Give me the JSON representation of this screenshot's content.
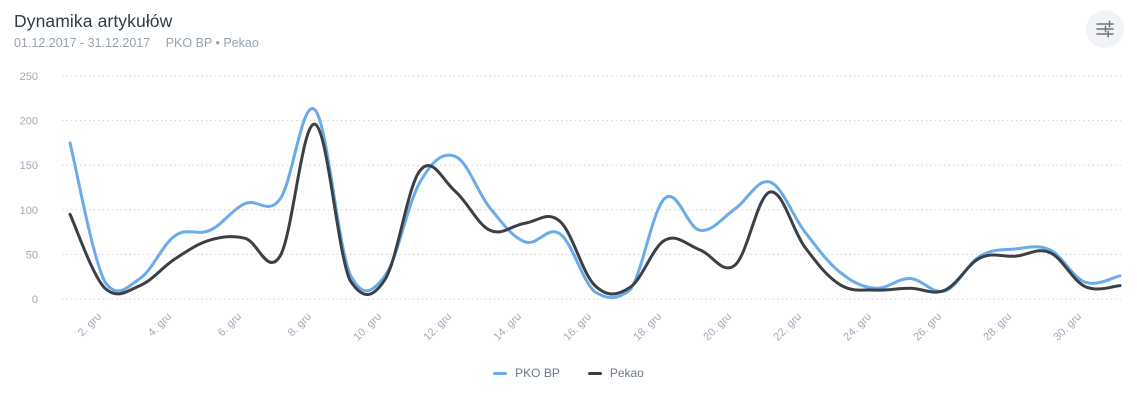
{
  "header": {
    "title": "Dynamika artykułów",
    "date_range": "01.12.2017 - 31.12.2017",
    "series_summary": "PKO BP • Pekao"
  },
  "controls": {
    "settings_icon": "sliders-icon"
  },
  "legend": {
    "items": [
      {
        "label": "PKO BP",
        "color": "#6aabe9"
      },
      {
        "label": "Pekao",
        "color": "#3b4046"
      }
    ]
  },
  "chart_data": {
    "type": "line",
    "title": "Dynamika artykułów",
    "xlabel": "",
    "ylabel": "",
    "x_unit": "day of December 2017",
    "x": [
      1,
      2,
      3,
      4,
      5,
      6,
      7,
      8,
      9,
      10,
      11,
      12,
      13,
      14,
      15,
      16,
      17,
      18,
      19,
      20,
      21,
      22,
      23,
      24,
      25,
      26,
      27,
      28,
      29,
      30,
      31
    ],
    "x_tick_labels": [
      "2. gru",
      "4. gru",
      "6. gru",
      "8. gru",
      "10. gru",
      "12. gru",
      "14. gru",
      "16. gru",
      "18. gru",
      "20. gru",
      "22. gru",
      "24. gru",
      "26. gru",
      "28. gru",
      "30. gru"
    ],
    "y_ticks": [
      0,
      50,
      100,
      150,
      200,
      250
    ],
    "ylim": [
      0,
      250
    ],
    "grid": "dotted-horizontal",
    "legend_position": "bottom",
    "smoothing": "spline",
    "series": [
      {
        "name": "PKO BP",
        "color": "#6aabe9",
        "values": [
          175,
          19,
          23,
          71,
          77,
          107,
          112,
          212,
          28,
          26,
          131,
          160,
          102,
          64,
          73,
          8,
          10,
          113,
          77,
          101,
          131,
          75,
          30,
          12,
          23,
          9,
          48,
          56,
          55,
          19,
          26
        ]
      },
      {
        "name": "Pekao",
        "color": "#3b4046",
        "values": [
          95,
          12,
          15,
          45,
          66,
          68,
          48,
          196,
          21,
          22,
          144,
          121,
          77,
          85,
          87,
          15,
          13,
          66,
          55,
          38,
          120,
          58,
          16,
          10,
          12,
          10,
          46,
          48,
          52,
          14,
          15
        ]
      }
    ]
  }
}
